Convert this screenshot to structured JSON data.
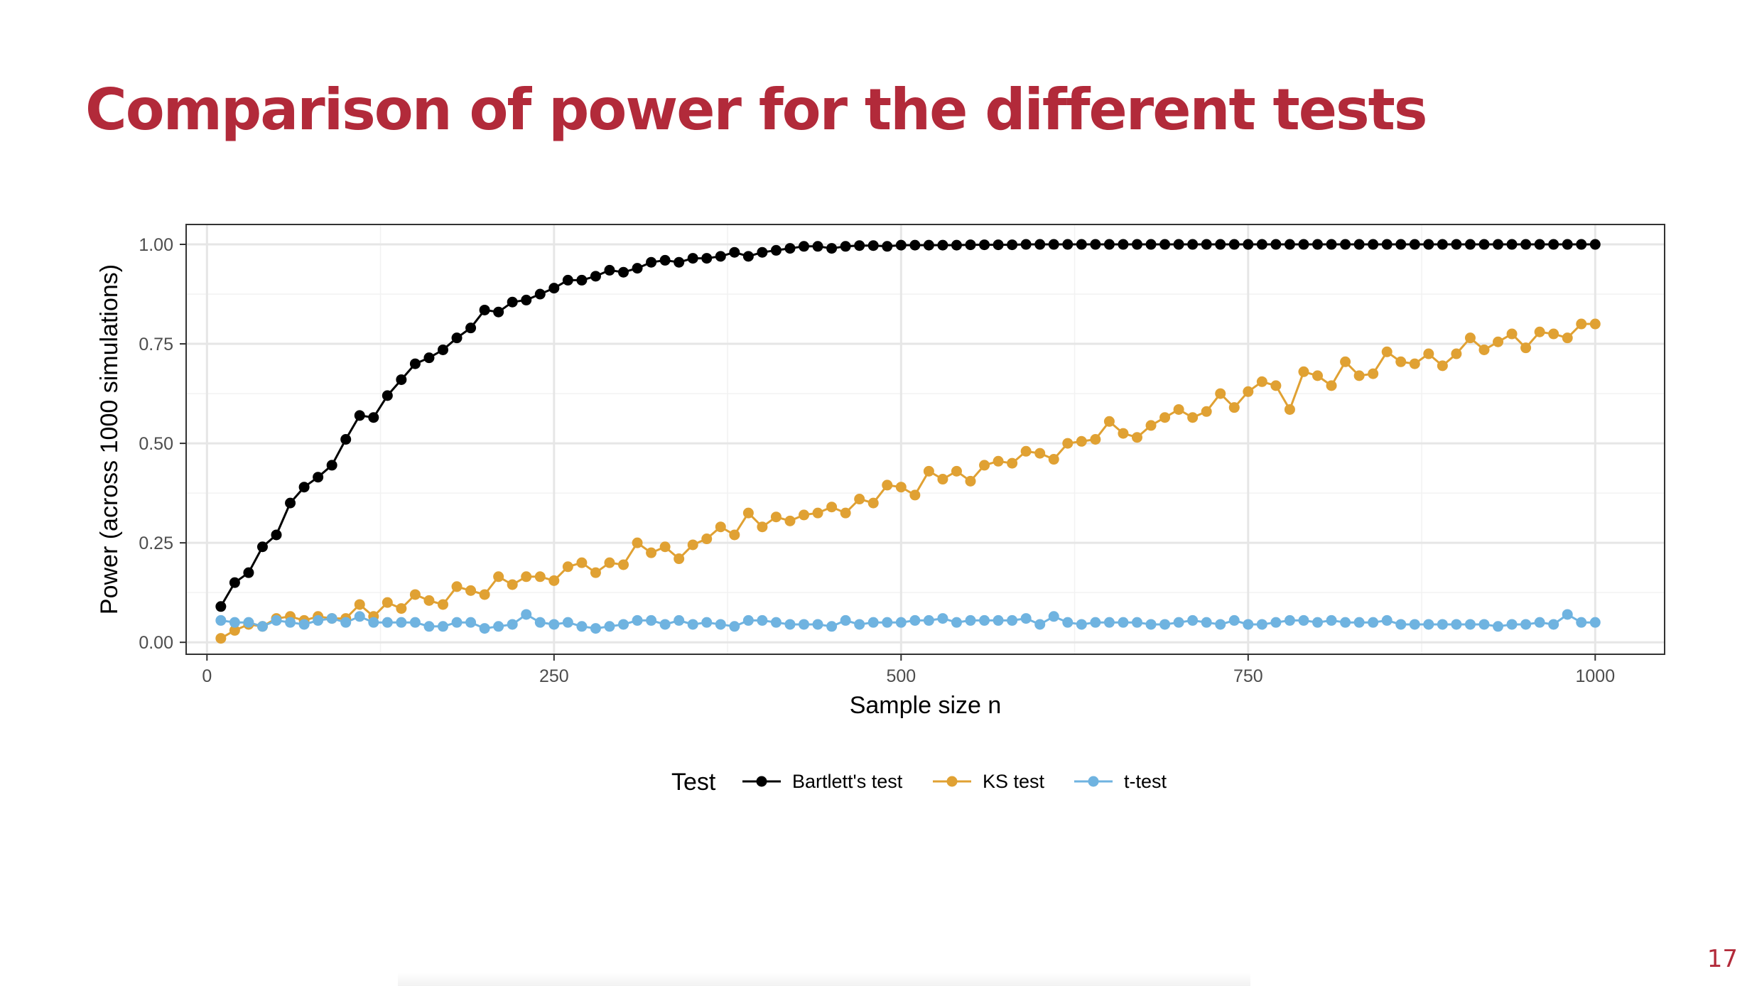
{
  "slide": {
    "title": "Comparison of power for the different tests",
    "page_number": "17",
    "title_color": "#b22a3a"
  },
  "chart_data": {
    "type": "line",
    "title": "",
    "xlabel": "Sample size n",
    "ylabel": "Power (across 1000 simulations)",
    "xlim": [
      -15,
      1050
    ],
    "ylim": [
      -0.03,
      1.05
    ],
    "x_ticks": [
      0,
      250,
      500,
      750,
      1000
    ],
    "x_tick_labels": [
      "0",
      "250",
      "500",
      "750",
      "1000"
    ],
    "y_ticks": [
      0,
      0.25,
      0.5,
      0.75,
      1.0
    ],
    "y_tick_labels": [
      "0.00",
      "0.25",
      "0.50",
      "0.75",
      "1.00"
    ],
    "grid": true,
    "legend": {
      "title": "Test",
      "position": "bottom"
    },
    "x": [
      10,
      20,
      30,
      40,
      50,
      60,
      70,
      80,
      90,
      100,
      110,
      120,
      130,
      140,
      150,
      160,
      170,
      180,
      190,
      200,
      210,
      220,
      230,
      240,
      250,
      260,
      270,
      280,
      290,
      300,
      310,
      320,
      330,
      340,
      350,
      360,
      370,
      380,
      390,
      400,
      410,
      420,
      430,
      440,
      450,
      460,
      470,
      480,
      490,
      500,
      510,
      520,
      530,
      540,
      550,
      560,
      570,
      580,
      590,
      600,
      610,
      620,
      630,
      640,
      650,
      660,
      670,
      680,
      690,
      700,
      710,
      720,
      730,
      740,
      750,
      760,
      770,
      780,
      790,
      800,
      810,
      820,
      830,
      840,
      850,
      860,
      870,
      880,
      890,
      900,
      910,
      920,
      930,
      940,
      950,
      960,
      970,
      980,
      990,
      1000
    ],
    "series": [
      {
        "name": "Bartlett's test",
        "color": "#000000",
        "values": [
          0.09,
          0.15,
          0.175,
          0.24,
          0.27,
          0.35,
          0.39,
          0.415,
          0.445,
          0.51,
          0.57,
          0.565,
          0.62,
          0.66,
          0.7,
          0.715,
          0.735,
          0.765,
          0.79,
          0.835,
          0.83,
          0.855,
          0.86,
          0.875,
          0.89,
          0.91,
          0.91,
          0.92,
          0.935,
          0.93,
          0.94,
          0.955,
          0.96,
          0.955,
          0.965,
          0.965,
          0.97,
          0.98,
          0.97,
          0.98,
          0.985,
          0.99,
          0.995,
          0.995,
          0.99,
          0.995,
          0.997,
          0.997,
          0.995,
          0.998,
          0.998,
          0.998,
          0.998,
          0.998,
          0.999,
          0.999,
          0.999,
          0.999,
          1.0,
          1.0,
          1.0,
          1.0,
          1.0,
          1.0,
          1.0,
          1.0,
          1.0,
          1.0,
          1.0,
          1.0,
          1.0,
          1.0,
          1.0,
          1.0,
          1.0,
          1.0,
          1.0,
          1.0,
          1.0,
          1.0,
          1.0,
          1.0,
          1.0,
          1.0,
          1.0,
          1.0,
          1.0,
          1.0,
          1.0,
          1.0,
          1.0,
          1.0,
          1.0,
          1.0,
          1.0,
          1.0,
          1.0,
          1.0,
          1.0,
          1.0
        ]
      },
      {
        "name": "KS test",
        "color": "#e0a133",
        "values": [
          0.01,
          0.03,
          0.045,
          0.04,
          0.06,
          0.065,
          0.055,
          0.065,
          0.06,
          0.06,
          0.095,
          0.065,
          0.1,
          0.085,
          0.12,
          0.105,
          0.095,
          0.14,
          0.13,
          0.12,
          0.165,
          0.145,
          0.165,
          0.165,
          0.155,
          0.19,
          0.2,
          0.175,
          0.2,
          0.195,
          0.25,
          0.225,
          0.24,
          0.21,
          0.245,
          0.26,
          0.29,
          0.27,
          0.325,
          0.29,
          0.315,
          0.305,
          0.32,
          0.325,
          0.34,
          0.325,
          0.36,
          0.35,
          0.395,
          0.39,
          0.37,
          0.43,
          0.41,
          0.43,
          0.405,
          0.445,
          0.455,
          0.45,
          0.48,
          0.475,
          0.46,
          0.5,
          0.505,
          0.51,
          0.555,
          0.525,
          0.515,
          0.545,
          0.565,
          0.585,
          0.565,
          0.58,
          0.625,
          0.59,
          0.63,
          0.655,
          0.645,
          0.585,
          0.68,
          0.67,
          0.645,
          0.705,
          0.67,
          0.675,
          0.73,
          0.705,
          0.7,
          0.725,
          0.695,
          0.725,
          0.765,
          0.735,
          0.755,
          0.775,
          0.74,
          0.78,
          0.775,
          0.765,
          0.8,
          0.8
        ]
      },
      {
        "name": "t-test",
        "color": "#6fb3e0",
        "values": [
          0.055,
          0.05,
          0.05,
          0.04,
          0.055,
          0.05,
          0.045,
          0.055,
          0.06,
          0.05,
          0.065,
          0.05,
          0.05,
          0.05,
          0.05,
          0.04,
          0.04,
          0.05,
          0.05,
          0.035,
          0.04,
          0.045,
          0.07,
          0.05,
          0.045,
          0.05,
          0.04,
          0.035,
          0.04,
          0.045,
          0.055,
          0.055,
          0.045,
          0.055,
          0.045,
          0.05,
          0.045,
          0.04,
          0.055,
          0.055,
          0.05,
          0.045,
          0.045,
          0.045,
          0.04,
          0.055,
          0.045,
          0.05,
          0.05,
          0.05,
          0.055,
          0.055,
          0.06,
          0.05,
          0.055,
          0.055,
          0.055,
          0.055,
          0.06,
          0.045,
          0.065,
          0.05,
          0.045,
          0.05,
          0.05,
          0.05,
          0.05,
          0.045,
          0.045,
          0.05,
          0.055,
          0.05,
          0.045,
          0.055,
          0.045,
          0.045,
          0.05,
          0.055,
          0.055,
          0.05,
          0.055,
          0.05,
          0.05,
          0.05,
          0.055,
          0.045,
          0.045,
          0.045,
          0.045,
          0.045,
          0.045,
          0.045,
          0.04,
          0.045,
          0.045,
          0.05,
          0.045,
          0.07,
          0.05,
          0.05
        ]
      }
    ]
  }
}
